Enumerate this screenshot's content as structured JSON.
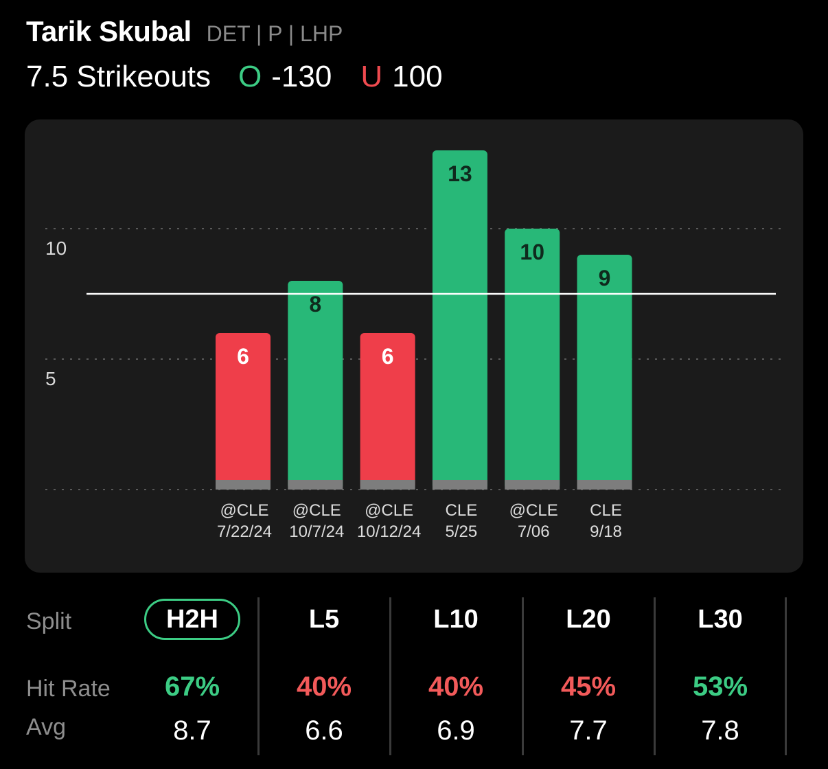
{
  "header": {
    "player_name": "Tarik Skubal",
    "player_meta": "DET | P | LHP",
    "prop_label": "7.5 Strikeouts",
    "over_marker": "O",
    "over_odds": "-130",
    "under_marker": "U",
    "under_odds": "100"
  },
  "colors": {
    "over_green": "#28b878",
    "under_red": "#ef3e4a",
    "hit_green": "#3ccc84",
    "miss_red": "#f25a5a",
    "card_bg": "#1b1b1b"
  },
  "chart_data": {
    "type": "bar",
    "line": 7.5,
    "yticks": [
      5,
      10
    ],
    "ylim": [
      0,
      13
    ],
    "grid": true,
    "categories": [
      {
        "opponent": "@CLE",
        "date": "7/22/24"
      },
      {
        "opponent": "@CLE",
        "date": "10/7/24"
      },
      {
        "opponent": "@CLE",
        "date": "10/12/24"
      },
      {
        "opponent": "CLE",
        "date": "5/25"
      },
      {
        "opponent": "@CLE",
        "date": "7/06"
      },
      {
        "opponent": "CLE",
        "date": "9/18"
      }
    ],
    "values": [
      6,
      8,
      6,
      13,
      10,
      9
    ],
    "value_labels": [
      "6",
      "8",
      "6",
      "13",
      "10",
      "9"
    ],
    "tick_labels": [
      "5",
      "10"
    ]
  },
  "splits": {
    "split_label": "Split",
    "hit_rate_label": "Hit Rate",
    "avg_label": "Avg",
    "items": [
      {
        "label": "H2H",
        "hit_rate": "67%",
        "avg": "8.7",
        "status": "hit",
        "active": true
      },
      {
        "label": "L5",
        "hit_rate": "40%",
        "avg": "6.6",
        "status": "miss",
        "active": false
      },
      {
        "label": "L10",
        "hit_rate": "40%",
        "avg": "6.9",
        "status": "miss",
        "active": false
      },
      {
        "label": "L20",
        "hit_rate": "45%",
        "avg": "7.7",
        "status": "miss",
        "active": false
      },
      {
        "label": "L30",
        "hit_rate": "53%",
        "avg": "7.8",
        "status": "hit",
        "active": false
      }
    ]
  }
}
